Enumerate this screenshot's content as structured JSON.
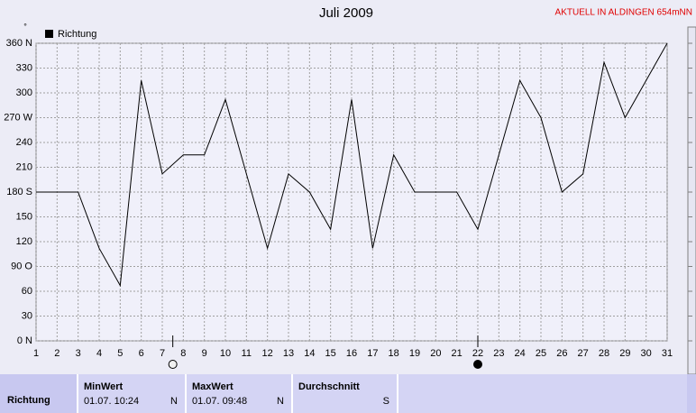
{
  "chart_data": {
    "type": "line",
    "title": "Juli 2009",
    "annotation": "AKTUELL IN ALDINGEN 654mNN",
    "y_unit": "°",
    "x": [
      1,
      2,
      3,
      4,
      5,
      6,
      7,
      8,
      9,
      10,
      11,
      12,
      13,
      14,
      15,
      16,
      17,
      18,
      19,
      20,
      21,
      22,
      23,
      24,
      25,
      26,
      27,
      28,
      29,
      30,
      31
    ],
    "series": [
      {
        "name": "Richtung",
        "color": "#000000",
        "values": [
          180,
          180,
          180,
          112,
          67,
          315,
          202,
          225,
          225,
          292,
          202,
          112,
          202,
          180,
          135,
          292,
          112,
          225,
          180,
          180,
          180,
          135,
          225,
          315,
          270,
          180,
          202,
          337,
          270,
          315,
          360
        ]
      }
    ],
    "xlim": [
      1,
      31
    ],
    "xticks": [
      1,
      2,
      3,
      4,
      5,
      6,
      7,
      8,
      9,
      10,
      11,
      12,
      13,
      14,
      15,
      16,
      17,
      18,
      19,
      20,
      21,
      22,
      23,
      24,
      25,
      26,
      27,
      28,
      29,
      30,
      31
    ],
    "ylim": [
      0,
      360
    ],
    "yticks": [
      {
        "value": 0,
        "label": "0 N"
      },
      30,
      60,
      {
        "value": 90,
        "label": "90 O"
      },
      120,
      150,
      {
        "value": 180,
        "label": "180 S"
      },
      210,
      240,
      {
        "value": 270,
        "label": "270 W"
      },
      300,
      330,
      {
        "value": 360,
        "label": "360 N"
      }
    ],
    "grid": true,
    "full_moon_x": 7.5,
    "new_moon_x": 22
  },
  "table": {
    "row_label": "Richtung",
    "columns": [
      {
        "header": "MinWert",
        "value": "01.07.  10:24",
        "dir": "N"
      },
      {
        "header": "MaxWert",
        "value": "01.07.  09:48",
        "dir": "N"
      },
      {
        "header": "Durchschnitt",
        "value": "",
        "dir": "S"
      }
    ]
  }
}
